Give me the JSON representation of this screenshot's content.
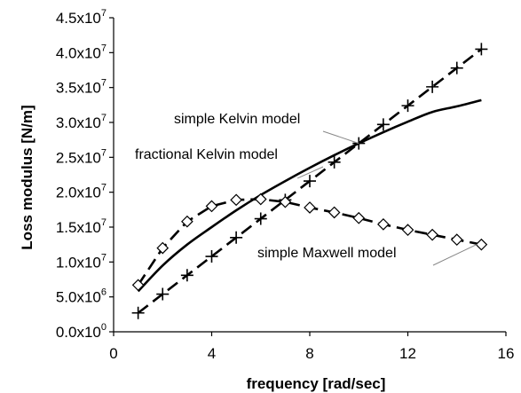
{
  "chart_data": {
    "type": "line",
    "xlabel": "frequency [rad/sec]",
    "ylabel": "Loss modulus [N/m]",
    "xlim": [
      0,
      16
    ],
    "ylim": [
      0,
      45000000
    ],
    "grid": false,
    "x_ticks": [
      0,
      4,
      8,
      12,
      16
    ],
    "x_tick_labels": [
      "0",
      "4",
      "8",
      "12",
      "16"
    ],
    "y_ticks": [
      {
        "value": 0,
        "mant": "0.0x10",
        "exp": "0"
      },
      {
        "value": 5000000,
        "mant": "5.0x10",
        "exp": "6"
      },
      {
        "value": 10000000,
        "mant": "1.0x10",
        "exp": "7"
      },
      {
        "value": 15000000,
        "mant": "1.5x10",
        "exp": "7"
      },
      {
        "value": 20000000,
        "mant": "2.0x10",
        "exp": "7"
      },
      {
        "value": 25000000,
        "mant": "2.5x10",
        "exp": "7"
      },
      {
        "value": 30000000,
        "mant": "3.0x10",
        "exp": "7"
      },
      {
        "value": 35000000,
        "mant": "3.5x10",
        "exp": "7"
      },
      {
        "value": 40000000,
        "mant": "4.0x10",
        "exp": "7"
      },
      {
        "value": 45000000,
        "mant": "4.5x10",
        "exp": "7"
      }
    ],
    "series": [
      {
        "name": "simple Kelvin model",
        "style": "dashed",
        "marker": "plus",
        "x": [
          1,
          2,
          3,
          4,
          5,
          6,
          7,
          8,
          9,
          10,
          11,
          12,
          13,
          14,
          15
        ],
        "y": [
          2700000,
          5400000,
          8100000,
          10800000,
          13500000,
          16200000,
          18900000,
          21600000,
          24300000,
          27000000,
          29700000,
          32400000,
          35100000,
          37800000,
          40500000
        ]
      },
      {
        "name": "fractional Kelvin model",
        "style": "solid",
        "marker": "none",
        "x": [
          1,
          2,
          3,
          4,
          5,
          6,
          7,
          8,
          9,
          10,
          11,
          12,
          13,
          14,
          15
        ],
        "y": [
          5800000,
          9500000,
          12500000,
          15000000,
          17400000,
          19600000,
          21600000,
          23500000,
          25300000,
          27000000,
          28600000,
          30100000,
          31500000,
          32300000,
          33200000
        ]
      },
      {
        "name": "simple Maxwell model",
        "style": "dashed",
        "marker": "diamond",
        "x": [
          1,
          2,
          3,
          4,
          5,
          6,
          7,
          8,
          9,
          10,
          11,
          12,
          13,
          14,
          15
        ],
        "y": [
          6700000,
          12000000,
          15800000,
          18000000,
          18900000,
          19000000,
          18600000,
          17800000,
          17100000,
          16300000,
          15400000,
          14600000,
          13900000,
          13200000,
          12500000
        ]
      }
    ],
    "annotations": [
      {
        "text": "simple Kelvin model",
        "series": 0,
        "target": [
          10,
          27000000
        ]
      },
      {
        "text": "fractional Kelvin model",
        "series": 1,
        "target": [
          7.5,
          22000000
        ]
      },
      {
        "text": "simple Maxwell model",
        "series": 2,
        "target": [
          14.8,
          12500000
        ]
      }
    ]
  }
}
